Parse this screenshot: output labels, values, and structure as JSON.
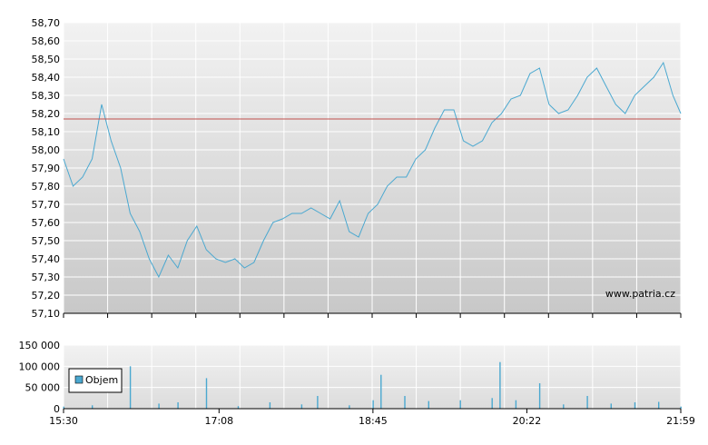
{
  "watermark": "www.patria.cz",
  "colors": {
    "line": "#4aa8d0",
    "reference_line": "#c0504d",
    "volume": "#4aa8d0",
    "grid": "#ffffff",
    "plot_top": "#f2f2f2",
    "plot_bottom": "#c8c8c8"
  },
  "chart_data": [
    {
      "type": "line",
      "xlabel": "",
      "ylabel": "",
      "grid": true,
      "ylim": [
        57.1,
        58.7
      ],
      "yticks": [
        "58,70",
        "58,60",
        "58,50",
        "58,40",
        "58,30",
        "58,20",
        "58,10",
        "58,00",
        "57,90",
        "57,80",
        "57,70",
        "57,60",
        "57,50",
        "57,40",
        "57,30",
        "57,20",
        "57,10"
      ],
      "reference_line": 58.17,
      "series": [
        {
          "x": [
            "15:30",
            "15:36",
            "15:42",
            "15:48",
            "15:54",
            "16:00",
            "16:06",
            "16:12",
            "16:18",
            "16:24",
            "16:30",
            "16:36",
            "16:42",
            "16:48",
            "16:54",
            "17:00",
            "17:06",
            "17:12",
            "17:18",
            "17:24",
            "17:30",
            "17:36",
            "17:42",
            "17:48",
            "17:54",
            "18:00",
            "18:06",
            "18:12",
            "18:18",
            "18:24",
            "18:30",
            "18:36",
            "18:42",
            "18:48",
            "18:54",
            "19:00",
            "19:06",
            "19:12",
            "19:18",
            "19:24",
            "19:30",
            "19:36",
            "19:42",
            "19:48",
            "19:54",
            "20:00",
            "20:06",
            "20:12",
            "20:18",
            "20:24",
            "20:30",
            "20:36",
            "20:42",
            "20:48",
            "20:54",
            "21:00",
            "21:06",
            "21:12",
            "21:18",
            "21:24",
            "21:30",
            "21:36",
            "21:42",
            "21:48",
            "21:54",
            "21:59"
          ],
          "values": [
            57.95,
            57.8,
            57.85,
            57.95,
            58.25,
            58.05,
            57.9,
            57.65,
            57.55,
            57.4,
            57.3,
            57.42,
            57.35,
            57.5,
            57.58,
            57.45,
            57.4,
            57.38,
            57.4,
            57.35,
            57.38,
            57.5,
            57.6,
            57.62,
            57.65,
            57.65,
            57.68,
            57.65,
            57.62,
            57.72,
            57.55,
            57.52,
            57.65,
            57.7,
            57.8,
            57.85,
            57.85,
            57.95,
            58.0,
            58.12,
            58.22,
            58.22,
            58.05,
            58.02,
            58.05,
            58.15,
            58.2,
            58.28,
            58.3,
            58.42,
            58.45,
            58.25,
            58.2,
            58.22,
            58.3,
            58.4,
            58.45,
            58.35,
            58.25,
            58.2,
            58.3,
            58.35,
            58.4,
            58.48,
            58.3,
            58.2
          ]
        }
      ]
    },
    {
      "type": "bar",
      "xlabel": "",
      "ylabel": "",
      "grid": true,
      "ylim": [
        0,
        150000
      ],
      "yticks": [
        "150 000",
        "100 000",
        "50 000",
        "0"
      ],
      "legend": "Objem",
      "legend_position": "left",
      "xticks": [
        "15:30",
        "17:08",
        "18:45",
        "20:22",
        "21:59"
      ],
      "series": [
        {
          "name": "Objem",
          "x": [
            "15:30",
            "15:48",
            "16:12",
            "16:30",
            "16:42",
            "17:00",
            "17:20",
            "17:40",
            "18:00",
            "18:10",
            "18:30",
            "18:45",
            "18:50",
            "19:05",
            "19:20",
            "19:40",
            "20:00",
            "20:05",
            "20:15",
            "20:30",
            "20:45",
            "21:00",
            "21:15",
            "21:30",
            "21:45",
            "21:59"
          ],
          "values": [
            5000,
            8000,
            100000,
            12000,
            15000,
            72000,
            6000,
            15000,
            10000,
            30000,
            8000,
            20000,
            80000,
            30000,
            18000,
            20000,
            25000,
            110000,
            20000,
            60000,
            10000,
            30000,
            12000,
            15000,
            16000,
            5000
          ]
        }
      ]
    }
  ]
}
